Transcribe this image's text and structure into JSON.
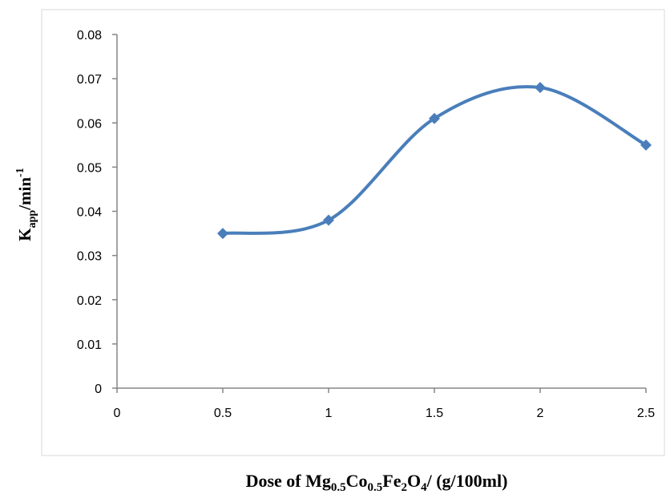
{
  "chart_data": {
    "type": "line",
    "smooth": true,
    "x": [
      0.5,
      1,
      1.5,
      2,
      2.5
    ],
    "series": [
      {
        "values": [
          0.035,
          0.038,
          0.061,
          0.068,
          0.055
        ]
      }
    ],
    "x_ticks": [
      "0",
      "0.5",
      "1",
      "1.5",
      "2",
      "2.5"
    ],
    "y_ticks": [
      "0",
      "0.01",
      "0.02",
      "0.03",
      "0.04",
      "0.05",
      "0.06",
      "0.07",
      "0.08"
    ],
    "xlim": [
      0,
      2.5
    ],
    "ylim": [
      0,
      0.08
    ],
    "xlabel": "Dose of Mg0.5Co0.5Fe2O4/ (g/100ml)",
    "ylabel": "Kapp/min-1",
    "xlabel_parts": {
      "p1": "Dose of Mg",
      "s1": "0.5",
      "p2": "Co",
      "s2": "0.5",
      "p3": "Fe",
      "s3": "2",
      "p4": "O",
      "s4": "4",
      "p5": "/ (g/100ml)"
    },
    "ylabel_parts": {
      "base": "K",
      "sub": "app",
      "mid": "/min",
      "sup": "-1"
    },
    "grid": false,
    "legend": "none",
    "colors": {
      "series": "#4a7ebb",
      "axis": "#868686",
      "frame": "#d9d9d9"
    }
  }
}
